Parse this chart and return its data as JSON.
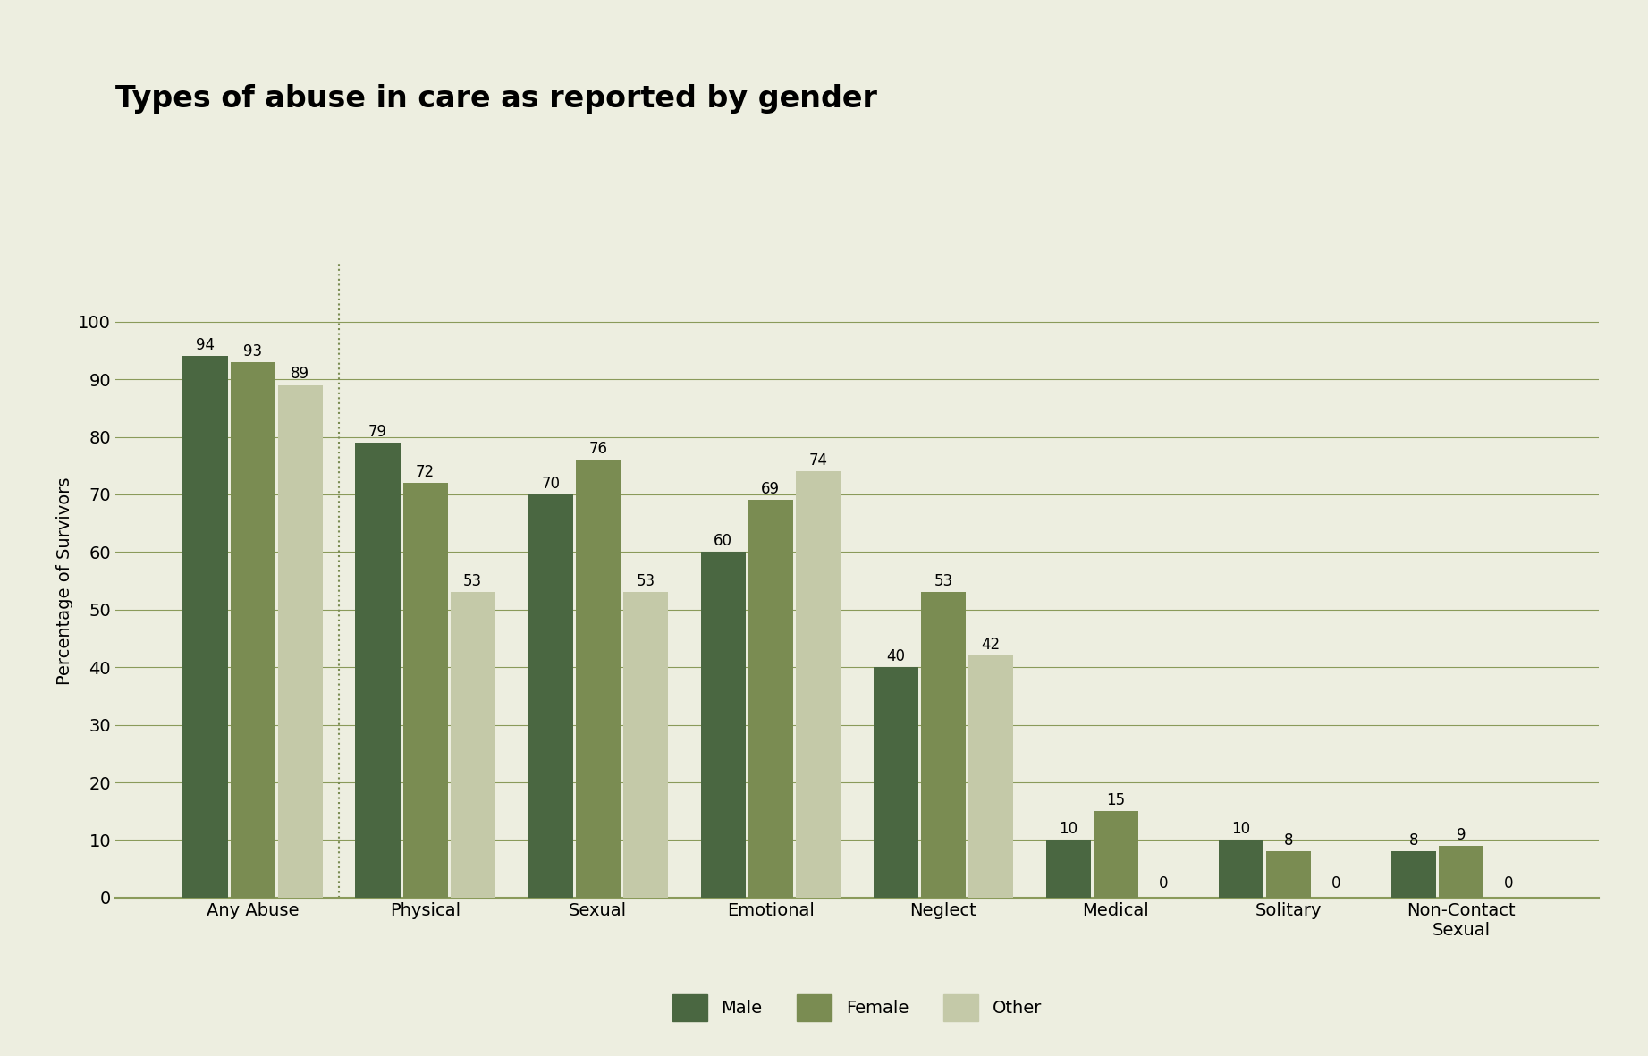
{
  "title": "Types of abuse in care as reported by gender",
  "categories": [
    "Any Abuse",
    "Physical",
    "Sexual",
    "Emotional",
    "Neglect",
    "Medical",
    "Solitary",
    "Non-Contact\nSexual"
  ],
  "male_values": [
    94,
    79,
    70,
    60,
    40,
    10,
    10,
    8
  ],
  "female_values": [
    93,
    72,
    76,
    69,
    53,
    15,
    8,
    9
  ],
  "other_values": [
    89,
    53,
    53,
    74,
    42,
    0,
    0,
    0
  ],
  "male_color": "#4a6741",
  "female_color": "#7a8c52",
  "other_color": "#c4c9a8",
  "background_color": "#edeee0",
  "grid_color": "#8a9a5a",
  "ylabel": "Percentage of Survivors",
  "ylim": [
    0,
    110
  ],
  "yticks": [
    0,
    10,
    20,
    30,
    40,
    50,
    60,
    70,
    80,
    90,
    100
  ],
  "title_fontsize": 24,
  "label_fontsize": 14,
  "tick_fontsize": 14,
  "bar_value_fontsize": 12,
  "legend_fontsize": 14,
  "has_dotted_line_after": 0
}
